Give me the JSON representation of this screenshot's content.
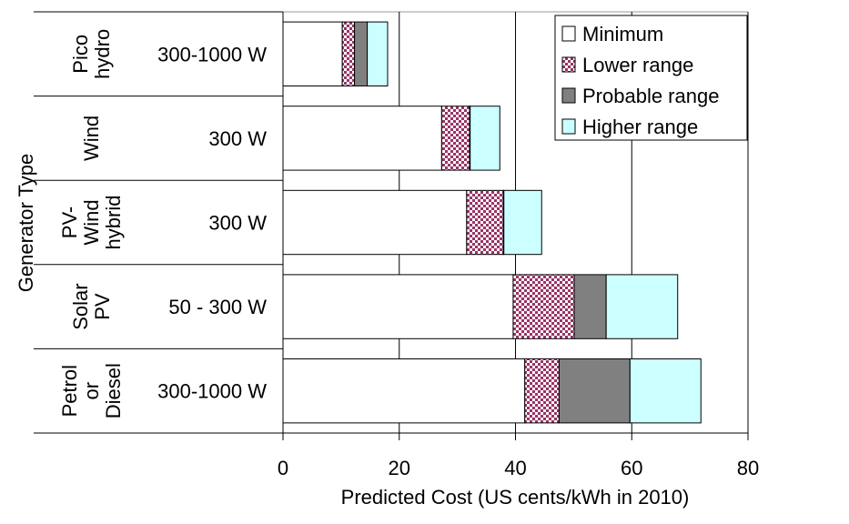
{
  "chart_data": {
    "type": "bar",
    "orientation": "horizontal",
    "stacked": true,
    "title": "",
    "xlabel": "Predicted Cost (US cents/kWh in 2010)",
    "ylabel": "Generator Type",
    "xlim": [
      0,
      80
    ],
    "xticks": [
      0,
      20,
      40,
      60,
      80
    ],
    "grid": true,
    "legend_position": "top-right",
    "categories": [
      {
        "type_lines": [
          "Pico",
          "hydro"
        ],
        "power": "300-1000 W"
      },
      {
        "type_lines": [
          "Wind"
        ],
        "power": "300 W"
      },
      {
        "type_lines": [
          "PV-",
          "Wind",
          "hybrid"
        ],
        "power": "300 W"
      },
      {
        "type_lines": [
          "Solar",
          "PV"
        ],
        "power": "50 - 300 W"
      },
      {
        "type_lines": [
          "Petrol",
          "or",
          "Diesel"
        ],
        "power": "300-1000 W"
      }
    ],
    "series": [
      {
        "name": "Minimum",
        "color": "#ffffff",
        "pattern": "none",
        "values": [
          10.2,
          27.3,
          31.6,
          39.6,
          41.6
        ]
      },
      {
        "name": "Lower range",
        "color": "#993366",
        "pattern": "checker",
        "values": [
          2.1,
          4.8,
          6.3,
          10.5,
          5.9
        ]
      },
      {
        "name": "Probable range",
        "color": "#808080",
        "pattern": "none",
        "values": [
          2.2,
          0.1,
          0.1,
          5.5,
          12.2
        ]
      },
      {
        "name": "Higher range",
        "color": "#ccffff",
        "pattern": "none",
        "values": [
          3.5,
          5.1,
          6.5,
          12.3,
          12.2
        ]
      }
    ]
  }
}
